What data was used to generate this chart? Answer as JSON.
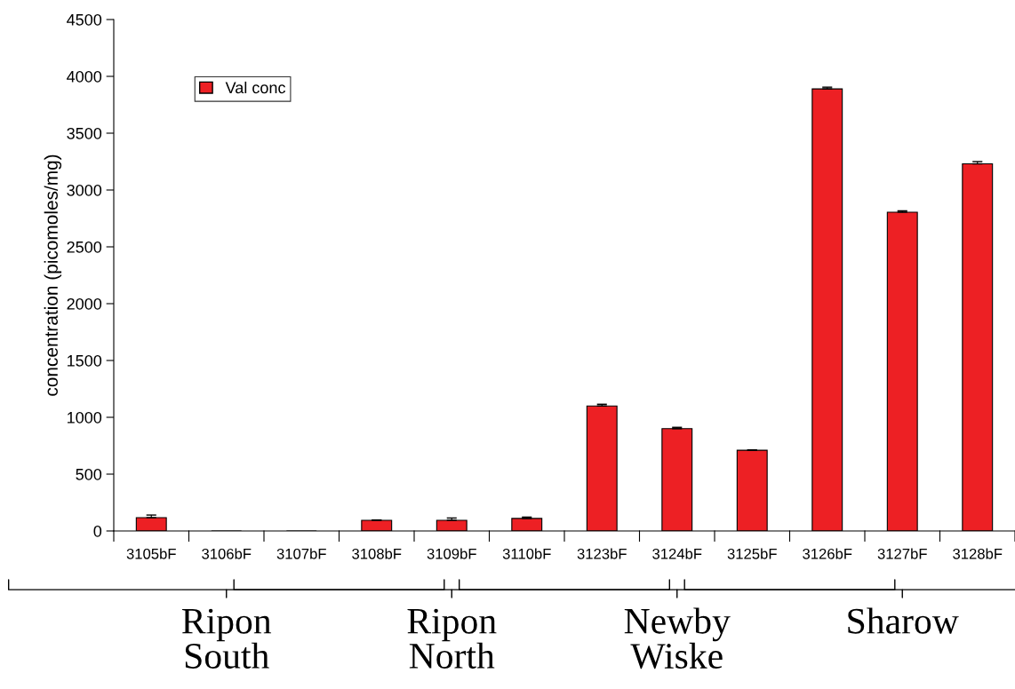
{
  "chart_data": {
    "type": "bar",
    "ylabel": "concentration (picomoles/mg)",
    "categories": [
      "3105bF",
      "3106bF",
      "3107bF",
      "3108bF",
      "3109bF",
      "3110bF",
      "3123bF",
      "3124bF",
      "3125bF",
      "3126bF",
      "3127bF",
      "3128bF"
    ],
    "series": [
      {
        "name": "Val conc",
        "color": "#ed2024",
        "values": [
          117,
          0,
          0,
          94,
          94,
          110,
          1100,
          900,
          710,
          3890,
          2805,
          3230
        ],
        "errors": [
          23,
          null,
          null,
          3,
          20,
          12,
          15,
          12,
          4,
          15,
          12,
          20
        ]
      }
    ],
    "ylim": [
      0,
      4500
    ],
    "yticks": [
      0,
      500,
      1000,
      1500,
      2000,
      2500,
      3000,
      3500,
      4000,
      4500
    ],
    "grid": false,
    "legend": "top left",
    "annotations": [
      "Ripon\nSouth",
      "Ripon\nNorth",
      "Newby\nWiske",
      "Sharow"
    ]
  }
}
